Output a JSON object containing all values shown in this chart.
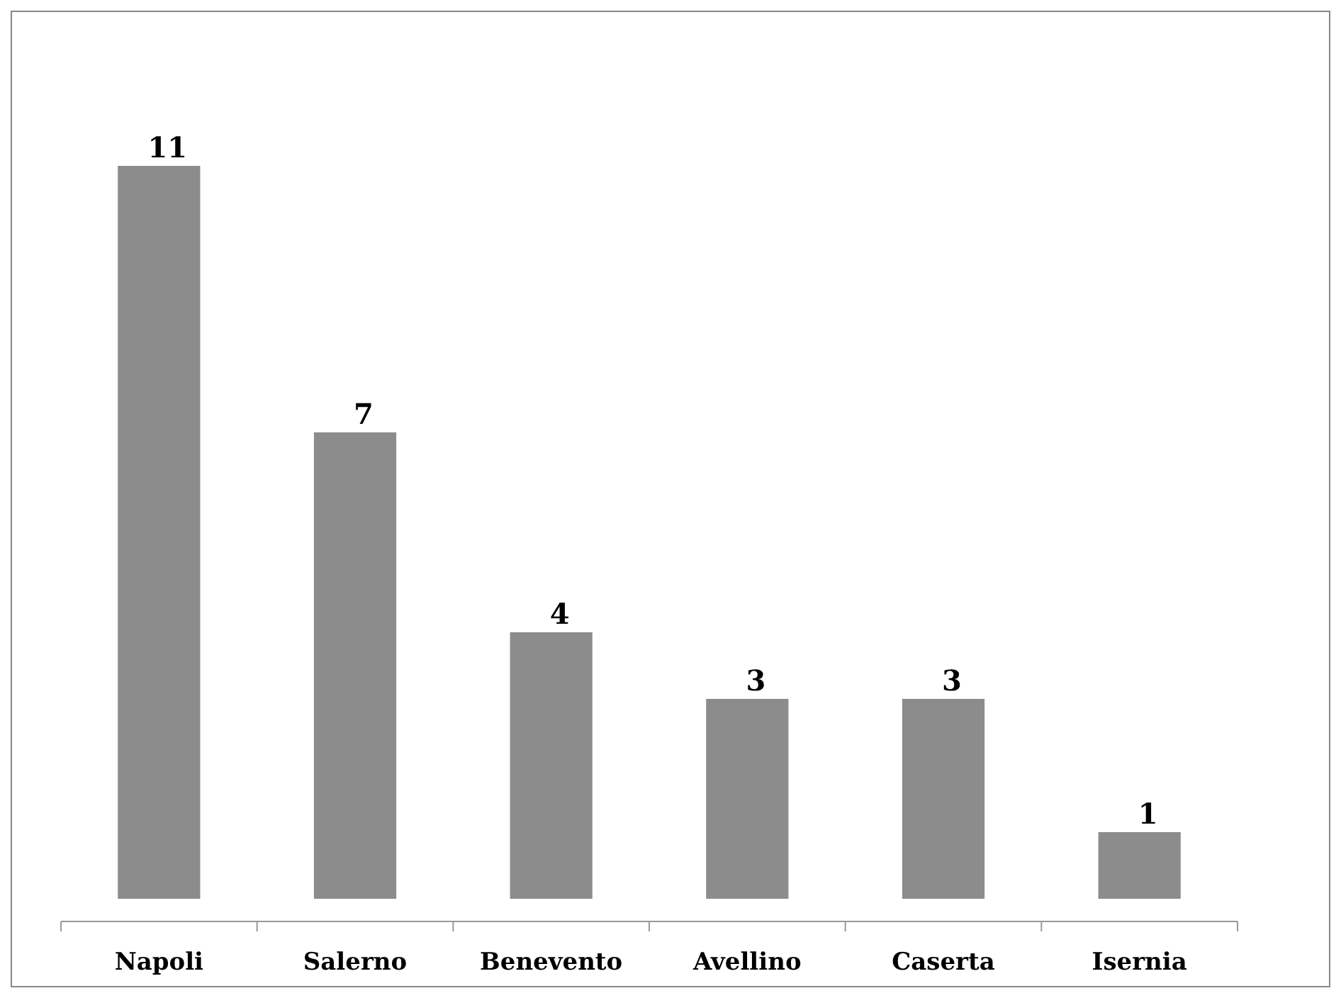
{
  "chart_data": {
    "type": "bar",
    "categories": [
      "Napoli",
      "Salerno",
      "Benevento",
      "Avellino",
      "Caserta",
      "Isernia"
    ],
    "values": [
      11,
      7,
      4,
      3,
      3,
      1
    ],
    "color": "#8c8c8c",
    "data_labels": true
  }
}
